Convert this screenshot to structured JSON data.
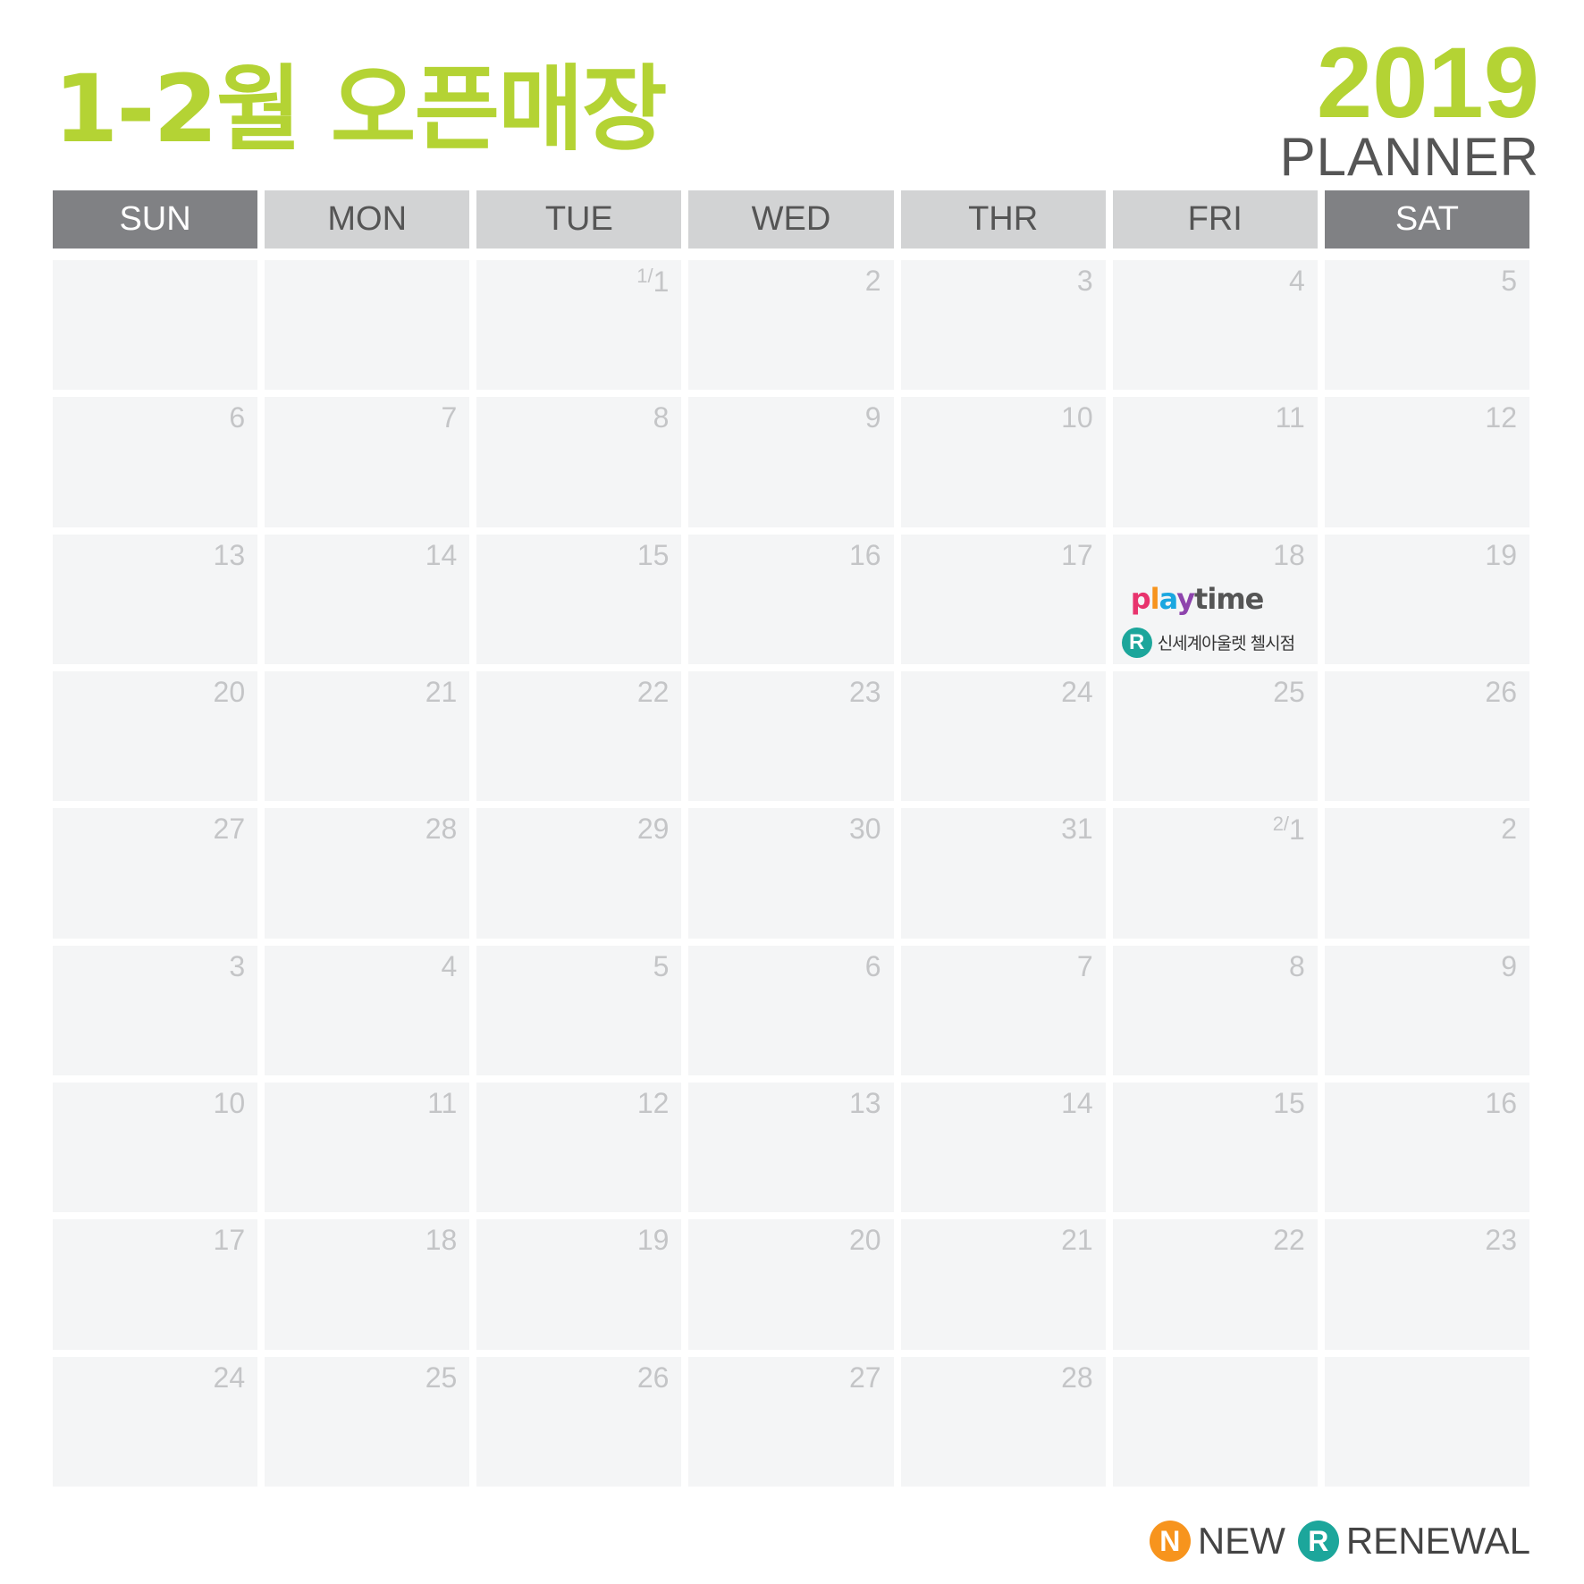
{
  "title": "1-2월 오픈매장",
  "year": "2019",
  "subtitle": "PLANNER",
  "colors": {
    "accent": "#b4d334",
    "weekend_header": "#808184",
    "weekday_header": "#d2d3d4",
    "cell": "#f4f5f6",
    "new_badge": "#f7941d",
    "renewal_badge": "#1ca69b"
  },
  "days": [
    "SUN",
    "MON",
    "TUE",
    "WED",
    "THR",
    "FRI",
    "SAT"
  ],
  "weeks": [
    [
      {
        "n": ""
      },
      {
        "n": ""
      },
      {
        "n": "1",
        "m": "1"
      },
      {
        "n": "2"
      },
      {
        "n": "3"
      },
      {
        "n": "4"
      },
      {
        "n": "5"
      }
    ],
    [
      {
        "n": "6"
      },
      {
        "n": "7"
      },
      {
        "n": "8"
      },
      {
        "n": "9"
      },
      {
        "n": "10"
      },
      {
        "n": "11"
      },
      {
        "n": "12"
      }
    ],
    [
      {
        "n": "13"
      },
      {
        "n": "14"
      },
      {
        "n": "15"
      },
      {
        "n": "16"
      },
      {
        "n": "17"
      },
      {
        "n": "18",
        "event": {
          "brand": "playtime",
          "type": "R",
          "store": "신세계아울렛 첼시점"
        }
      },
      {
        "n": "19"
      }
    ],
    [
      {
        "n": "20"
      },
      {
        "n": "21"
      },
      {
        "n": "22"
      },
      {
        "n": "23"
      },
      {
        "n": "24"
      },
      {
        "n": "25"
      },
      {
        "n": "26"
      }
    ],
    [
      {
        "n": "27"
      },
      {
        "n": "28"
      },
      {
        "n": "29"
      },
      {
        "n": "30"
      },
      {
        "n": "31"
      },
      {
        "n": "1",
        "m": "2"
      },
      {
        "n": "2"
      }
    ],
    [
      {
        "n": "3"
      },
      {
        "n": "4"
      },
      {
        "n": "5"
      },
      {
        "n": "6"
      },
      {
        "n": "7"
      },
      {
        "n": "8"
      },
      {
        "n": "9"
      }
    ],
    [
      {
        "n": "10"
      },
      {
        "n": "11"
      },
      {
        "n": "12"
      },
      {
        "n": "13"
      },
      {
        "n": "14"
      },
      {
        "n": "15"
      },
      {
        "n": "16"
      }
    ],
    [
      {
        "n": "17"
      },
      {
        "n": "18"
      },
      {
        "n": "19"
      },
      {
        "n": "20"
      },
      {
        "n": "21"
      },
      {
        "n": "22"
      },
      {
        "n": "23"
      }
    ],
    [
      {
        "n": "24"
      },
      {
        "n": "25"
      },
      {
        "n": "26"
      },
      {
        "n": "27"
      },
      {
        "n": "28"
      },
      {
        "n": ""
      },
      {
        "n": ""
      }
    ]
  ],
  "legend": [
    {
      "badge": "N",
      "label": "NEW"
    },
    {
      "badge": "R",
      "label": "RENEWAL"
    }
  ]
}
